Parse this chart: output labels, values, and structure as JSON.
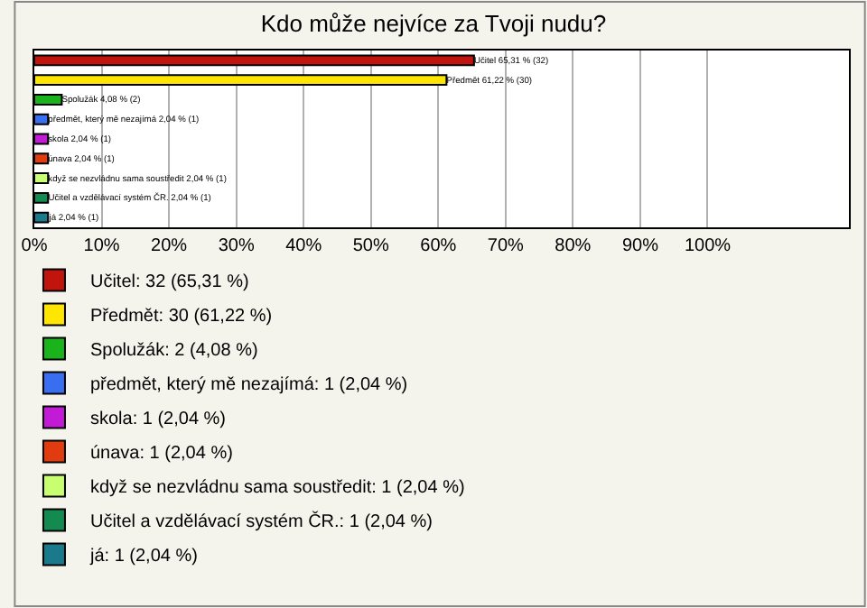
{
  "chart_data": {
    "type": "bar",
    "orientation": "horizontal",
    "title": "Kdo může nejvíce za Tvoji nudu?",
    "categories": [
      null,
      null,
      null,
      null,
      null,
      null,
      null,
      null,
      null
    ],
    "series": [
      {
        "name": "Učitel: 32 (65,31 %)",
        "color": "#c0140c",
        "values": [
          65.31,
          null,
          null,
          null,
          null,
          null,
          null,
          null,
          null
        ],
        "value_labels": [
          "Učitel 65,31 % (32)",
          null,
          null,
          null,
          null,
          null,
          null,
          null,
          null
        ]
      },
      {
        "name": "Předmět: 30 (61,22 %)",
        "color": "#ffe600",
        "values": [
          null,
          61.22,
          null,
          null,
          null,
          null,
          null,
          null,
          null
        ],
        "value_labels": [
          null,
          "Předmět 61,22 % (30)",
          null,
          null,
          null,
          null,
          null,
          null,
          null
        ]
      },
      {
        "name": "Spolužák: 2 (4,08 %)",
        "color": "#1bb31b",
        "values": [
          null,
          null,
          4.08,
          null,
          null,
          null,
          null,
          null,
          null
        ],
        "value_labels": [
          null,
          null,
          "Spolužák 4,08 % (2)",
          null,
          null,
          null,
          null,
          null,
          null
        ]
      },
      {
        "name": "předmět, který mě nezajímá: 1 (2,04 %)",
        "color": "#3a6ef0",
        "values": [
          null,
          null,
          null,
          2.04,
          null,
          null,
          null,
          null,
          null
        ],
        "value_labels": [
          null,
          null,
          null,
          "předmět, který mě nezajímá 2,04 % (1)",
          null,
          null,
          null,
          null,
          null
        ]
      },
      {
        "name": "skola: 1 (2,04 %)",
        "color": "#c21bd6",
        "values": [
          null,
          null,
          null,
          null,
          2.04,
          null,
          null,
          null,
          null
        ],
        "value_labels": [
          null,
          null,
          null,
          null,
          "skola 2,04 % (1)",
          null,
          null,
          null,
          null
        ]
      },
      {
        "name": "únava: 1 (2,04 %)",
        "color": "#e03c10",
        "values": [
          null,
          null,
          null,
          null,
          null,
          2.04,
          null,
          null,
          null
        ],
        "value_labels": [
          null,
          null,
          null,
          null,
          null,
          "únava 2,04 % (1)",
          null,
          null,
          null
        ]
      },
      {
        "name": "když se nezvládnu sama soustředit: 1 (2,04 %)",
        "color": "#c8ff70",
        "values": [
          null,
          null,
          null,
          null,
          null,
          null,
          2.04,
          null,
          null
        ],
        "value_labels": [
          null,
          null,
          null,
          null,
          null,
          null,
          "když se nezvládnu sama soustředit 2,04 % (1)",
          null,
          null
        ]
      },
      {
        "name": "Učitel a vzdělávací systém ČR.: 1 (2,04 %)",
        "color": "#128a50",
        "values": [
          null,
          null,
          null,
          null,
          null,
          null,
          null,
          2.04,
          null
        ],
        "value_labels": [
          null,
          null,
          null,
          null,
          null,
          null,
          null,
          "Učitel a vzdělávací systém ČR. 2,04 % (1)",
          null
        ]
      },
      {
        "name": "já: 1 (2,04 %)",
        "color": "#1a7a8c",
        "values": [
          null,
          null,
          null,
          null,
          null,
          null,
          null,
          null,
          2.04
        ],
        "value_labels": [
          null,
          null,
          null,
          null,
          null,
          null,
          null,
          null,
          "já 2,04 % (1)"
        ]
      }
    ],
    "xlim": [
      0,
      121
    ],
    "xticks": [
      {
        "value": 0,
        "label": "0%"
      },
      {
        "value": 10,
        "label": "10%"
      },
      {
        "value": 20,
        "label": "20%"
      },
      {
        "value": 30,
        "label": "30%"
      },
      {
        "value": 40,
        "label": "40%"
      },
      {
        "value": 50,
        "label": "50%"
      },
      {
        "value": 60,
        "label": "60%"
      },
      {
        "value": 70,
        "label": "70%"
      },
      {
        "value": 80,
        "label": "80%"
      },
      {
        "value": 90,
        "label": "90%"
      },
      {
        "value": 100,
        "label": "100%"
      }
    ],
    "grid": "x",
    "legend": "bottom"
  }
}
